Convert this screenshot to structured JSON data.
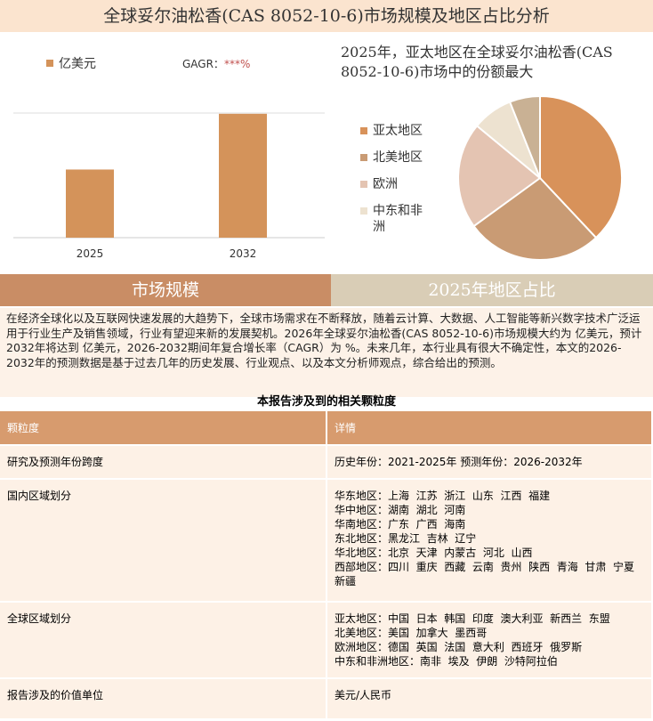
{
  "title": "全球妥尔油松香(CAS 8052-10-6)市场规模及地区占比分析",
  "chart_data": [
    {
      "type": "bar",
      "categories": [
        "2025",
        "2032"
      ],
      "series": [
        {
          "name": "亿美元",
          "color": "#d4935a",
          "values": [
            5.5,
            10
          ]
        }
      ],
      "ylim": [
        0,
        12
      ],
      "annotation_label": "GAGR：",
      "annotation_value": "***%"
    },
    {
      "type": "pie",
      "title": "2025年，亚太地区在全球妥尔油松香(CAS 8052-10-6)市场中的份额最大",
      "categories": [
        "亚太地区",
        "北美地区",
        "欧洲",
        "中东和非洲",
        null
      ],
      "values": [
        38,
        27,
        21,
        8,
        6
      ],
      "colors": [
        "#d8925a",
        "#c99b74",
        "#e4c4b2",
        "#ede2d0",
        "#c9b194"
      ]
    }
  ],
  "tabs": [
    "市场规模",
    "2025年地区占比"
  ],
  "paragraph": "在经济全球化以及互联网快速发展的大趋势下，全球市场需求在不断释放，随着云计算、大数据、人工智能等新兴数字技术广泛运用于行业生产及销售领域，行业有望迎来新的发展契机。2026年全球妥尔油松香(CAS 8052-10-6)市场规模大约为 亿美元，预计2032年将达到 亿美元，2026-2032期间年复合增长率（CAGR）为 %。未来几年，本行业具有很大不确定性，本文的2026-2032年的预测数据是基于过去几年的历史发展、行业观点、以及本文分析师观点，综合给出的预测。",
  "table": {
    "caption": "本报告涉及到的相关颗粒度",
    "header": [
      "颗粒度",
      "详情"
    ],
    "rows": [
      [
        "研究及预测年份跨度",
        [
          "历史年份：2021-2025年 预测年份：2026-2032年"
        ]
      ],
      [
        "国内区域划分",
        [
          "华东地区：上海  江苏  浙江  山东  江西  福建",
          "华中地区：湖南  湖北  河南",
          "华南地区：广东  广西  海南",
          "东北地区：黑龙江  吉林  辽宁",
          "华北地区：北京  天津  内蒙古  河北  山西",
          "西部地区：四川  重庆  西藏  云南  贵州  陕西  青海  甘肃  宁夏  新疆"
        ]
      ],
      [
        "全球区域划分",
        [
          "亚太地区：中国  日本  韩国  印度  澳大利亚  新西兰  东盟",
          "北美地区：美国  加拿大  墨西哥",
          "欧洲地区：德国  英国  法国  意大利  西班牙  俄罗斯",
          "中东和非洲地区：南非  埃及  伊朗  沙特阿拉伯"
        ]
      ],
      [
        "报告涉及的价值单位",
        [
          "美元/人民币"
        ]
      ]
    ]
  }
}
